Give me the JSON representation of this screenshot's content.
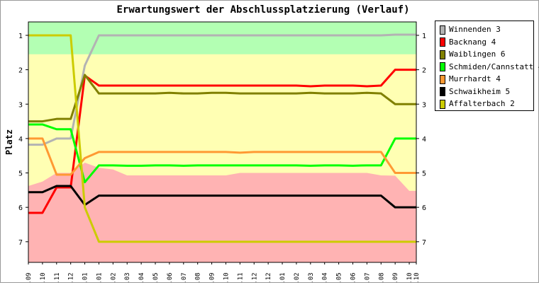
{
  "chart_data": {
    "type": "line",
    "title": "Erwartungswert der Abschlussplatzierung (Verlauf)",
    "ylabel": "Platz",
    "xlabel": "",
    "ylim": [
      0.61,
      7.6
    ],
    "y_inverted": true,
    "yticks": [
      1,
      2,
      3,
      4,
      5,
      6,
      7
    ],
    "grid": false,
    "legend_placement": "right",
    "categories": [
      "11.09",
      "09.10",
      "06.11",
      "04.12",
      "01.01",
      "29.01",
      "26.02",
      "25.03",
      "22.04",
      "20.05",
      "17.06",
      "15.07",
      "12.08",
      "09.09",
      "07.10",
      "04.11",
      "02.12",
      "30.12",
      "27.01",
      "24.02",
      "24.03",
      "21.04",
      "19.05",
      "16.06",
      "14.07",
      "11.08",
      "08.09",
      "06.10",
      "20.10"
    ],
    "x_weeks": [
      0,
      4,
      8,
      12,
      16,
      20,
      24,
      28,
      32,
      36,
      40,
      44,
      48,
      52,
      56,
      60,
      64,
      68,
      72,
      76,
      80,
      84,
      88,
      92,
      96,
      100,
      104,
      108,
      110
    ],
    "zones": {
      "promotion_until": 1.55,
      "relegation_from": [
        5.38,
        5.25,
        5.0,
        5.0,
        4.7,
        4.85,
        4.9,
        5.07,
        5.07,
        5.07,
        5.07,
        5.07,
        5.07,
        5.07,
        5.07,
        5.0,
        5.0,
        5.0,
        5.0,
        5.0,
        5.0,
        5.0,
        5.0,
        5.0,
        5.0,
        5.07,
        5.08,
        5.52,
        5.52
      ],
      "colors": {
        "promotion": "#b3ffb3",
        "middle": "#ffffb3",
        "relegation": "#ffb3b3"
      }
    },
    "series": [
      {
        "name": "Winnenden 3",
        "color": "#b3b3b3",
        "values": [
          4.18,
          4.18,
          4.0,
          4.0,
          1.88,
          1,
          1,
          1,
          1,
          1,
          1,
          1,
          1,
          1,
          1,
          1,
          1,
          1,
          1,
          1,
          1,
          1,
          1,
          1,
          1,
          1,
          0.98,
          0.98,
          0.98
        ]
      },
      {
        "name": "Backnang 4",
        "color": "#ff0000",
        "values": [
          6.16,
          6.16,
          5.42,
          5.42,
          2.17,
          2.46,
          2.46,
          2.46,
          2.46,
          2.46,
          2.46,
          2.46,
          2.46,
          2.46,
          2.46,
          2.46,
          2.46,
          2.46,
          2.46,
          2.46,
          2.48,
          2.46,
          2.46,
          2.46,
          2.48,
          2.46,
          2.0,
          2.0,
          2.0
        ]
      },
      {
        "name": "Waiblingen 6",
        "color": "#808000",
        "values": [
          3.5,
          3.5,
          3.43,
          3.43,
          2.15,
          2.69,
          2.69,
          2.69,
          2.69,
          2.69,
          2.67,
          2.69,
          2.69,
          2.67,
          2.67,
          2.69,
          2.69,
          2.69,
          2.69,
          2.69,
          2.67,
          2.69,
          2.69,
          2.69,
          2.67,
          2.69,
          3.0,
          3.0,
          3.0
        ]
      },
      {
        "name": "Schmiden/Cannstatt 4",
        "color": "#00ff00",
        "values": [
          3.59,
          3.59,
          3.73,
          3.73,
          5.27,
          4.78,
          4.78,
          4.79,
          4.79,
          4.78,
          4.78,
          4.79,
          4.78,
          4.78,
          4.78,
          4.78,
          4.78,
          4.78,
          4.78,
          4.78,
          4.79,
          4.78,
          4.78,
          4.79,
          4.78,
          4.78,
          4.0,
          4.0,
          4.0
        ]
      },
      {
        "name": "Murrhardt 4",
        "color": "#ff9933",
        "values": [
          4.0,
          4.0,
          5.05,
          5.05,
          4.57,
          4.39,
          4.39,
          4.39,
          4.39,
          4.39,
          4.39,
          4.39,
          4.39,
          4.39,
          4.39,
          4.41,
          4.39,
          4.39,
          4.39,
          4.39,
          4.39,
          4.39,
          4.39,
          4.39,
          4.39,
          4.39,
          5.0,
          5.0,
          5.0
        ]
      },
      {
        "name": "Schwaikheim 5",
        "color": "#000000",
        "values": [
          5.56,
          5.56,
          5.38,
          5.38,
          5.93,
          5.66,
          5.66,
          5.66,
          5.66,
          5.66,
          5.66,
          5.66,
          5.66,
          5.66,
          5.66,
          5.66,
          5.66,
          5.66,
          5.66,
          5.66,
          5.66,
          5.66,
          5.66,
          5.66,
          5.66,
          5.66,
          6.0,
          6.0,
          6.0
        ]
      },
      {
        "name": "Affalterbach 2",
        "color": "#cccc00",
        "values": [
          1,
          1,
          1,
          1,
          6.0,
          7,
          7,
          7,
          7,
          7,
          7,
          7,
          7,
          7,
          7,
          7,
          7,
          7,
          7,
          7,
          7,
          7,
          7,
          7,
          7,
          7,
          7,
          7,
          7
        ]
      }
    ]
  }
}
